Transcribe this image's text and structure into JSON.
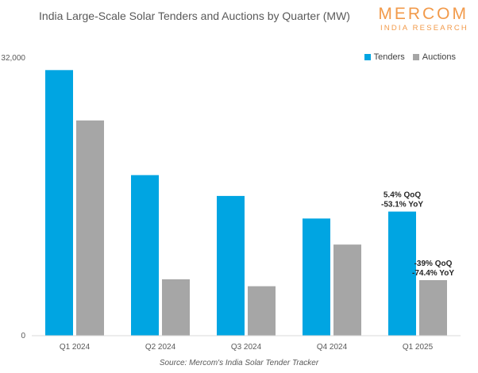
{
  "chart_data": {
    "type": "bar",
    "title": "India Large-Scale Solar Tenders and Auctions by Quarter (MW)",
    "categories": [
      "Q1 2024",
      "Q2 2024",
      "Q3 2024",
      "Q4 2024",
      "Q1 2025"
    ],
    "series": [
      {
        "name": "Tenders",
        "color": "#00a5e2",
        "values": [
          30600,
          18500,
          16100,
          13500,
          14300
        ]
      },
      {
        "name": "Auctions",
        "color": "#a6a6a6",
        "values": [
          24800,
          6500,
          5700,
          10500,
          6400
        ]
      }
    ],
    "ylim": [
      0,
      32000
    ],
    "y_ticks": [
      "0",
      "32,000"
    ],
    "legend_position": "top-right",
    "grid": false,
    "annotations": [
      {
        "series": "Tenders",
        "category": "Q1 2025",
        "lines": [
          "5.4% QoQ",
          "-53.1% YoY"
        ]
      },
      {
        "series": "Auctions",
        "category": "Q1 2025",
        "lines": [
          "-39% QoQ",
          "-74.4% YoY"
        ]
      }
    ]
  },
  "brand": {
    "name": "MERCOM",
    "subtitle": "INDIA RESEARCH"
  },
  "source": "Source: Mercom's India Solar Tender Tracker"
}
